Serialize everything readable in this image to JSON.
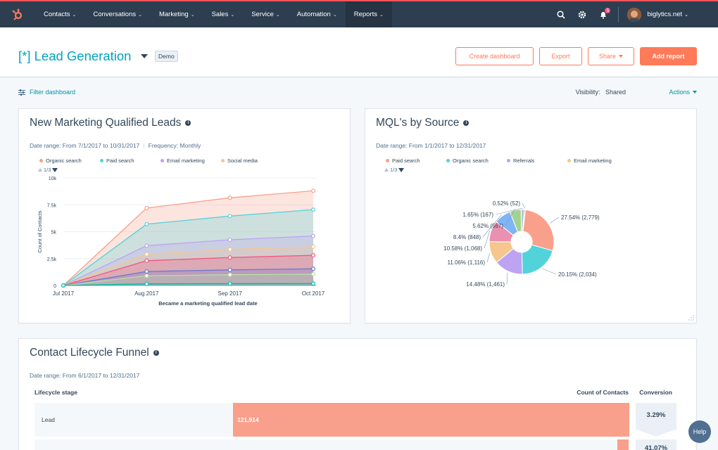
{
  "nav": {
    "items": [
      {
        "label": "Contacts"
      },
      {
        "label": "Conversations"
      },
      {
        "label": "Marketing"
      },
      {
        "label": "Sales"
      },
      {
        "label": "Service"
      },
      {
        "label": "Automation"
      },
      {
        "label": "Reports"
      }
    ],
    "notification_count": "5",
    "account": "biglytics.net",
    "active": "Reports"
  },
  "header": {
    "title": "[*] Lead Generation",
    "badge": "Demo",
    "buttons": {
      "create": "Create dashboard",
      "export": "Export",
      "share": "Share",
      "add": "Add report"
    }
  },
  "toolbar": {
    "filter": "Filter dashboard",
    "visibility_label": "Visibility:",
    "visibility_value": "Shared",
    "actions": "Actions"
  },
  "mql_card": {
    "title": "New Marketing Qualified Leads",
    "date_range": "Date range: From 7/1/2017 to 10/31/2017",
    "frequency": "Frequency: Monthly",
    "pager": "1/3"
  },
  "source_card": {
    "title": "MQL's by Source",
    "date_range": "Date range: From 1/1/2017 to 12/31/2017",
    "pager": "1/3"
  },
  "funnel_card": {
    "title": "Contact Lifecycle Funnel",
    "date_range": "Date range: From 6/1/2017 to 12/31/2017",
    "col_stage": "Lifecycle stage",
    "col_count": "Count of Contacts",
    "col_conversion": "Conversion",
    "rows": [
      {
        "stage": "Lead",
        "count": "121,914",
        "conversion": "3.29%"
      },
      {
        "stage": "",
        "count": "",
        "conversion": "41.07%"
      }
    ]
  },
  "help": "Help",
  "colors": {
    "accent": "#ff7a59",
    "teal": "#00a4bd",
    "nav": "#2d3e50"
  },
  "chart_data": [
    {
      "type": "area",
      "title": "New Marketing Qualified Leads",
      "xlabel": "Became a marketing qualified lead date",
      "ylabel": "Count of Contacts",
      "categories": [
        "Jul 2017",
        "Aug 2017",
        "Sep 2017",
        "Oct 2017"
      ],
      "y_ticks": [
        "0",
        "2.5k",
        "5k",
        "7.5k",
        "10k"
      ],
      "ylim": [
        0,
        10000
      ],
      "stacked": false,
      "legend_visible": [
        "Organic search",
        "Paid search",
        "Email marketing",
        "Social media"
      ],
      "series": [
        {
          "name": "Organic search",
          "color": "#f8a08b",
          "values": [
            0,
            7200,
            8150,
            8800
          ]
        },
        {
          "name": "Paid search",
          "color": "#51d3d9",
          "values": [
            0,
            5700,
            6450,
            7050
          ]
        },
        {
          "name": "Email marketing",
          "color": "#bda3f2",
          "values": [
            0,
            3700,
            4250,
            4600
          ]
        },
        {
          "name": "Social media",
          "color": "#f5c78e",
          "values": [
            0,
            2900,
            3350,
            3600
          ]
        },
        {
          "color": "#f2547d",
          "values": [
            0,
            2300,
            2600,
            2800
          ]
        },
        {
          "color": "#6a78d1",
          "values": [
            0,
            1300,
            1450,
            1550
          ]
        },
        {
          "color": "#b6e1a4",
          "values": [
            0,
            900,
            1000,
            1050
          ]
        },
        {
          "color": "#00bda5",
          "values": [
            0,
            150,
            170,
            180
          ]
        }
      ]
    },
    {
      "type": "pie",
      "title": "MQL's by Source",
      "legend_visible": [
        "Paid search",
        "Organic search",
        "Referrals",
        "Email marketing"
      ],
      "slices": [
        {
          "color": "#f8a08b",
          "value": 2779,
          "label": "27.54% (2,779)"
        },
        {
          "color": "#51d3d9",
          "value": 2034,
          "label": "20.15% (2,034)"
        },
        {
          "color": "#bda3f2",
          "value": 1461,
          "label": "14.48% (1,461)"
        },
        {
          "color": "#f5c78e",
          "value": 1116,
          "label": "11.06% (1,116)"
        },
        {
          "color": "#ea90b1",
          "value": 1068,
          "label": "10.58% (1,068)"
        },
        {
          "color": "#7fb4f5",
          "value": 848,
          "label": "8.4% (848)"
        },
        {
          "color": "#a2d28f",
          "value": 567,
          "label": "5.62% (567)"
        },
        {
          "color": "#b9c6d3",
          "value": 167,
          "label": "1.65% (167)"
        },
        {
          "color": "#e96a5a",
          "value": 52,
          "label": "0.52% (52)"
        }
      ]
    }
  ]
}
